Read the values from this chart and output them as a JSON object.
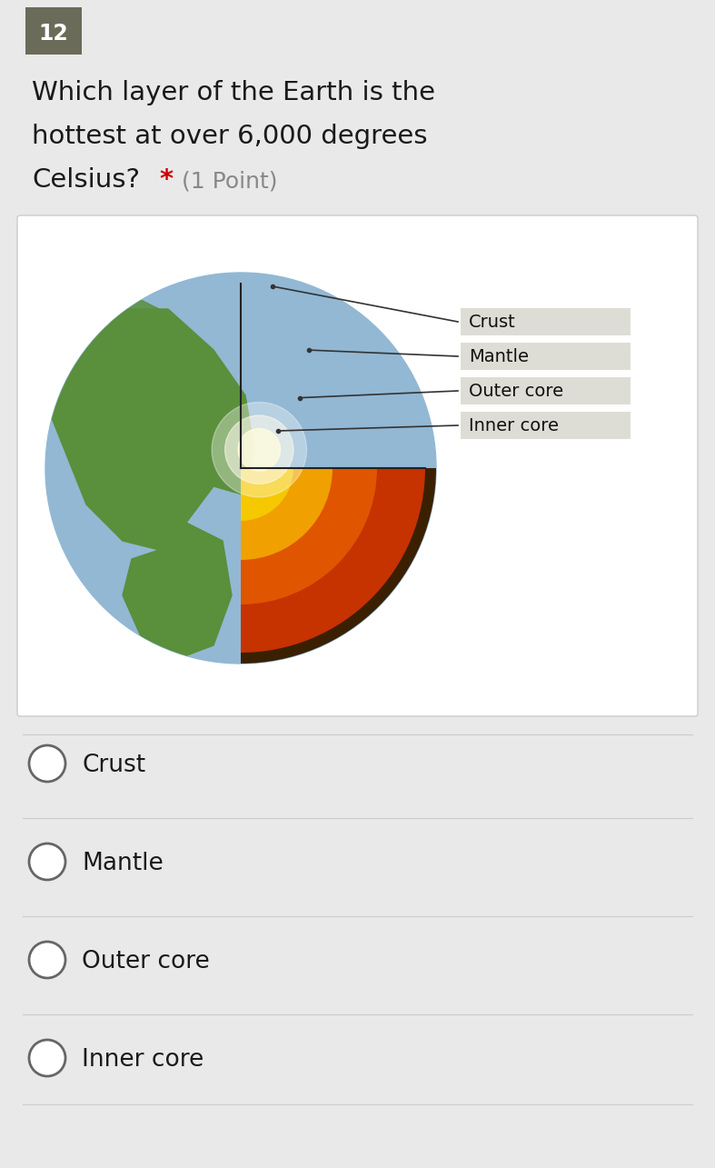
{
  "bg_color": "#e9e9e9",
  "number_bg": "#6b6b5a",
  "number_text": "12",
  "number_text_color": "#ffffff",
  "question_line1": "Which layer of the Earth is the",
  "question_line2": "hottest at over 6,000 degrees",
  "question_line3": "Celsius?",
  "asterisk": "*",
  "point_text": "(1 Point)",
  "question_color": "#1a1a1a",
  "asterisk_color": "#cc0000",
  "point_color": "#888888",
  "image_panel_bg": "#ffffff",
  "options": [
    "Crust",
    "Mantle",
    "Outer core",
    "Inner core"
  ],
  "option_color": "#1a1a1a",
  "option_fontsize": 19,
  "radio_color": "#666666",
  "label_crust": "Crust",
  "label_mantle": "Mantle",
  "label_outer": "Outer core",
  "label_inner": "Inner core",
  "crust_color": "#c63200",
  "mantle_color": "#e05500",
  "outer_core_color": "#f0a000",
  "inner_core_color": "#f5c800",
  "inner_glow_color": "#fffacc",
  "ocean_color": "#92b8d4",
  "land_color": "#5a8f3c",
  "label_box_color": "#ddddd5",
  "cut_edge_color": "#222222",
  "dark_edge_color": "#3a2000"
}
